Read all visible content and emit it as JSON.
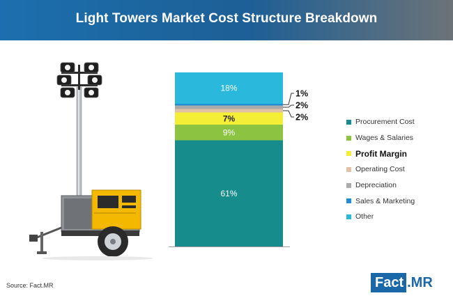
{
  "title": "Light Towers Market Cost Structure Breakdown",
  "source": "Source: Fact.MR",
  "logo": {
    "left": "Fact",
    "right": ".MR"
  },
  "chart_data": {
    "type": "bar",
    "stacked": true,
    "title": "Light Towers Market Cost Structure Breakdown",
    "unit": "%",
    "series": [
      {
        "name": "Procurement Cost",
        "value": 61,
        "label": "61%",
        "color": "#178c8c"
      },
      {
        "name": "Wages & Salaries",
        "value": 9,
        "label": "9%",
        "color": "#8cc340"
      },
      {
        "name": "Profit Margin",
        "value": 7,
        "label": "7%",
        "color": "#f5ee37"
      },
      {
        "name": "Operating Cost",
        "value": 2,
        "label": "2%",
        "color": "#e2c2a4"
      },
      {
        "name": "Depreciation",
        "value": 2,
        "label": "2%",
        "color": "#aaaaaa"
      },
      {
        "name": "Sales & Marketing",
        "value": 1,
        "label": "1%",
        "color": "#1f8ed4"
      },
      {
        "name": "Other",
        "value": 18,
        "label": "18%",
        "color": "#2ab9dd"
      }
    ],
    "legend_position": "right",
    "legend_emphasis": "Profit Margin"
  }
}
